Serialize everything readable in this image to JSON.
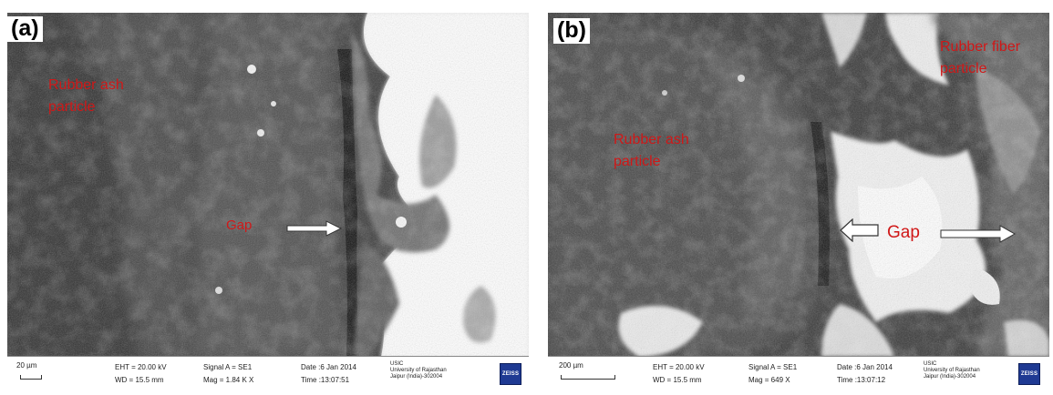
{
  "panel_a": {
    "letter": "(a)",
    "label_ash_line1": "Rubber ash",
    "label_ash_line2": "particle",
    "label_gap": "Gap",
    "databar": {
      "scale": "20 µm",
      "eht": "EHT = 20.00 kV",
      "wd": "WD = 15.5 mm",
      "signal": "Signal A = SE1",
      "mag": "Mag =   1.84 K X",
      "date": "Date :6 Jan 2014",
      "time": "Time :13:07:51",
      "inst1": "USIC",
      "inst2": "University of Rajasthan",
      "inst3": "Jaipur (India)-302004",
      "logo": "ZEISS"
    }
  },
  "panel_b": {
    "letter": "(b)",
    "label_ash_line1": "Rubber ash",
    "label_ash_line2": "particle",
    "label_fiber_line1": "Rubber fiber",
    "label_fiber_line2": "particle",
    "label_gap": "Gap",
    "databar": {
      "scale": "200 µm",
      "eht": "EHT = 20.00 kV",
      "wd": "WD = 15.5 mm",
      "signal": "Signal A = SE1",
      "mag": "Mag =   649 X",
      "date": "Date :6 Jan 2014",
      "time": "Time :13:07:12",
      "inst1": "USIC",
      "inst2": "University of Rajasthan",
      "inst3": "Jaipur (India)-302004",
      "logo": "ZEISS"
    }
  },
  "colors": {
    "label_red": "#d01818",
    "zeiss_blue": "#1f3a93"
  }
}
